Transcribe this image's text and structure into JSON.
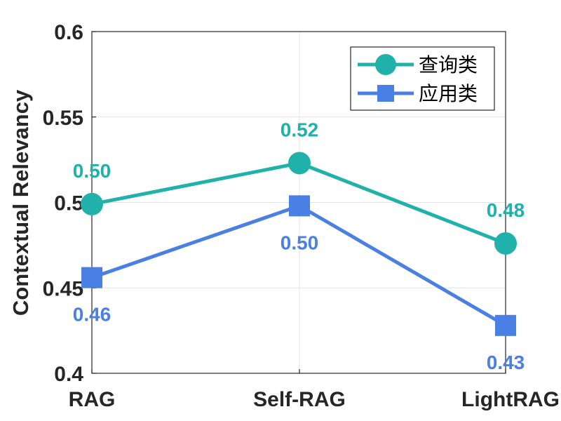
{
  "chart_data": {
    "type": "line",
    "categories": [
      "RAG",
      "Self-RAG",
      "LightRAG"
    ],
    "ylabel": "Contextual Relevancy",
    "ylim": [
      0.4,
      0.6
    ],
    "yticks": [
      0.4,
      0.45,
      0.5,
      0.55,
      0.6
    ],
    "ytick_labels": [
      "0.4",
      "0.45",
      "0.5",
      "0.55",
      "0.6"
    ],
    "grid": true,
    "legend_position": "top-right",
    "series": [
      {
        "name": "查询类",
        "values": [
          0.499,
          0.523,
          0.476
        ],
        "labels": [
          "0.50",
          "0.52",
          "0.48"
        ],
        "label_side": [
          "above",
          "above",
          "above"
        ],
        "color": "#20B2AA",
        "marker": "circle"
      },
      {
        "name": "应用类",
        "values": [
          0.456,
          0.498,
          0.428
        ],
        "labels": [
          "0.46",
          "0.50",
          "0.43"
        ],
        "label_side": [
          "below",
          "below",
          "below"
        ],
        "color": "#4A7FE3",
        "marker": "square"
      }
    ]
  }
}
